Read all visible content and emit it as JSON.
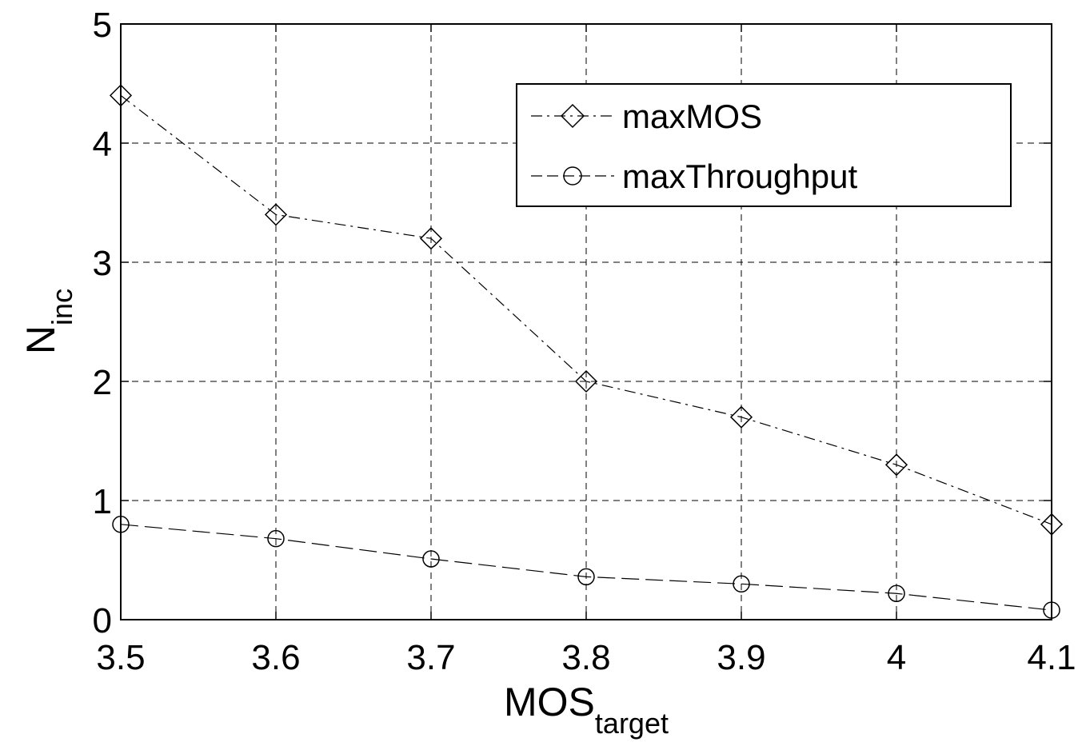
{
  "chart_data": {
    "type": "line",
    "title": "",
    "xlabel_main": "MOS",
    "xlabel_sub": "target",
    "ylabel_main": "N",
    "ylabel_sub": "inc",
    "xlim": [
      3.5,
      4.1
    ],
    "ylim": [
      0,
      5
    ],
    "x_ticks": [
      "3.5",
      "3.6",
      "3.7",
      "3.8",
      "3.9",
      "4",
      "4.1"
    ],
    "y_ticks": [
      "0",
      "1",
      "2",
      "3",
      "4",
      "5"
    ],
    "grid": true,
    "legend_position": "top-right",
    "x": [
      3.5,
      3.6,
      3.7,
      3.8,
      3.9,
      4.0,
      4.1
    ],
    "series": [
      {
        "name": "maxMOS",
        "marker": "diamond",
        "line_style": "dash-dot",
        "values": [
          4.4,
          3.4,
          3.2,
          2.0,
          1.7,
          1.3,
          0.8
        ]
      },
      {
        "name": "maxThroughput",
        "marker": "circle",
        "line_style": "dashed",
        "values": [
          0.8,
          0.68,
          0.51,
          0.36,
          0.3,
          0.22,
          0.08
        ]
      }
    ]
  }
}
